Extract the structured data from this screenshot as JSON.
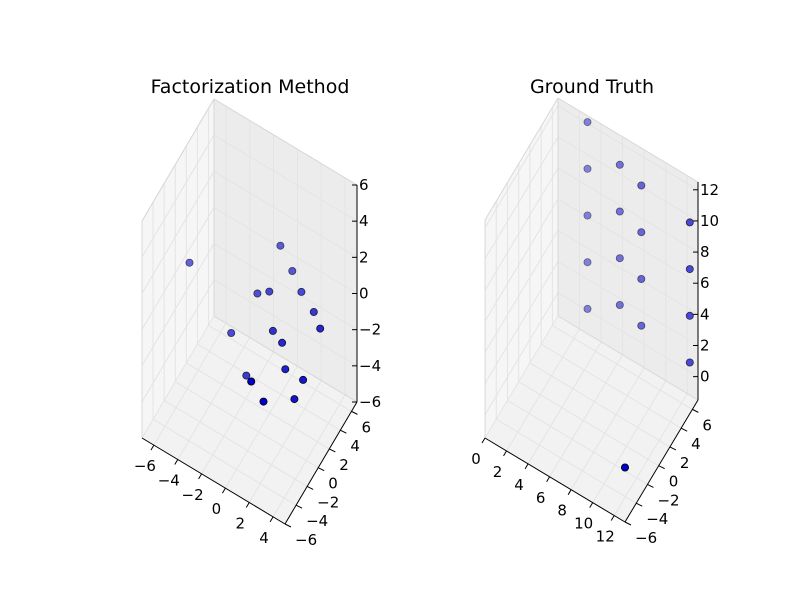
{
  "figure": {
    "background": "#ffffff"
  },
  "chart_data": [
    {
      "type": "scatter",
      "projection": "3d",
      "title": "Factorization Method",
      "xlim": [
        -7,
        5
      ],
      "ylim": [
        -6,
        7
      ],
      "zlim": [
        -6,
        6
      ],
      "xticks": [
        -6,
        -4,
        -2,
        0,
        2,
        4
      ],
      "yticks": [
        -6,
        -4,
        -2,
        0,
        2,
        4,
        6
      ],
      "zticks": [
        -6,
        -4,
        -2,
        0,
        2,
        4,
        6
      ],
      "xtick_labels": [
        "−6",
        "−4",
        "−2",
        "0",
        "2",
        "4"
      ],
      "ytick_labels": [
        "−6",
        "−4",
        "−2",
        "0",
        "2",
        "4",
        "6"
      ],
      "ztick_labels": [
        "−6",
        "−4",
        "−2",
        "0",
        "2",
        "4",
        "6"
      ],
      "grid": true,
      "color": "#0000cc",
      "series": [
        {
          "points": [
            {
              "x": -6.5,
              "y": 1.5,
              "z": 0.0
            },
            {
              "x": -3.0,
              "y": 1.5,
              "z": -2.5
            },
            {
              "x": -1.5,
              "y": 1.0,
              "z": -4.0
            },
            {
              "x": 1.0,
              "y": -3.5,
              "z": -1.0
            },
            {
              "x": 2.5,
              "y": -4.5,
              "z": -1.0
            },
            {
              "x": -1.5,
              "y": 3.0,
              "z": -0.5
            },
            {
              "x": -0.5,
              "y": 3.0,
              "z": 0.0
            },
            {
              "x": 0.5,
              "y": 1.5,
              "z": -1.0
            },
            {
              "x": 1.5,
              "y": 1.0,
              "z": -1.0
            },
            {
              "x": 2.0,
              "y": 0.5,
              "z": -2.0
            },
            {
              "x": 3.0,
              "y": 0.0,
              "z": -3.0
            },
            {
              "x": 3.5,
              "y": 0.5,
              "z": -2.0
            },
            {
              "x": -0.5,
              "y": 5.0,
              "z": 1.5
            },
            {
              "x": 0.5,
              "y": 5.0,
              "z": 0.5
            },
            {
              "x": 1.5,
              "y": 4.5,
              "z": 0.0
            },
            {
              "x": 3.0,
              "y": 3.5,
              "z": 0.0
            },
            {
              "x": 4.0,
              "y": 2.5,
              "z": 0.0
            }
          ]
        }
      ]
    },
    {
      "type": "scatter",
      "projection": "3d",
      "title": "Ground Truth",
      "xlim": [
        0,
        13
      ],
      "ylim": [
        -6,
        7
      ],
      "zlim": [
        -1.5,
        12.5
      ],
      "xticks": [
        0,
        2,
        4,
        6,
        8,
        10,
        12
      ],
      "yticks": [
        -6,
        -4,
        -2,
        0,
        2,
        4,
        6
      ],
      "zticks": [
        0,
        2,
        4,
        6,
        8,
        10,
        12
      ],
      "xtick_labels": [
        "0",
        "2",
        "4",
        "6",
        "8",
        "10",
        "12"
      ],
      "ytick_labels": [
        "−6",
        "−4",
        "−2",
        "0",
        "2",
        "4",
        "6"
      ],
      "ztick_labels": [
        "0",
        "2",
        "4",
        "6",
        "8",
        "10",
        "12"
      ],
      "grid": true,
      "color": "#0000cc",
      "series": [
        {
          "points": [
            {
              "x": 3.0,
              "y": 6.5,
              "z": 0.5
            },
            {
              "x": 3.0,
              "y": 6.5,
              "z": 3.5
            },
            {
              "x": 3.0,
              "y": 6.5,
              "z": 6.5
            },
            {
              "x": 3.0,
              "y": 6.5,
              "z": 9.5
            },
            {
              "x": 3.0,
              "y": 6.5,
              "z": 12.5
            },
            {
              "x": 6.0,
              "y": 6.5,
              "z": 2.0
            },
            {
              "x": 6.0,
              "y": 6.5,
              "z": 5.0
            },
            {
              "x": 6.0,
              "y": 6.5,
              "z": 8.0
            },
            {
              "x": 6.0,
              "y": 6.5,
              "z": 11.0
            },
            {
              "x": 8.0,
              "y": 6.5,
              "z": 1.5
            },
            {
              "x": 8.0,
              "y": 6.5,
              "z": 4.5
            },
            {
              "x": 8.0,
              "y": 6.5,
              "z": 7.5
            },
            {
              "x": 8.0,
              "y": 6.5,
              "z": 10.5
            },
            {
              "x": 12.5,
              "y": 6.5,
              "z": 1.0
            },
            {
              "x": 12.5,
              "y": 6.5,
              "z": 4.0
            },
            {
              "x": 12.5,
              "y": 6.5,
              "z": 7.0
            },
            {
              "x": 12.5,
              "y": 6.5,
              "z": 10.0
            },
            {
              "x": 13.0,
              "y": -6.0,
              "z": 2.0
            }
          ]
        }
      ]
    }
  ]
}
